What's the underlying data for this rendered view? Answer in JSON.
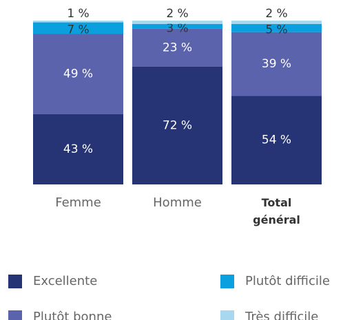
{
  "chart_data": {
    "type": "stacked_bar",
    "categories": [
      "Femme",
      "Homme",
      "Total général"
    ],
    "series": [
      {
        "name": "Excellente",
        "color": "#263476",
        "values": [
          43,
          72,
          54
        ],
        "value_labels": [
          "43 %",
          "72 %",
          "54 %"
        ]
      },
      {
        "name": "Plutôt bonne",
        "color": "#5c63ad",
        "values": [
          49,
          23,
          39
        ],
        "value_labels": [
          "49 %",
          "23 %",
          "39 %"
        ]
      },
      {
        "name": "Plutôt difficile",
        "color": "#0aa0e0",
        "values": [
          7,
          3,
          5
        ],
        "value_labels": [
          "7 %",
          "3 %",
          "5 %"
        ]
      },
      {
        "name": "Très difficile",
        "color": "#a8d8f0",
        "values": [
          1,
          2,
          2
        ],
        "value_labels": [
          "1 %",
          "2 %",
          "2 %"
        ]
      }
    ]
  }
}
